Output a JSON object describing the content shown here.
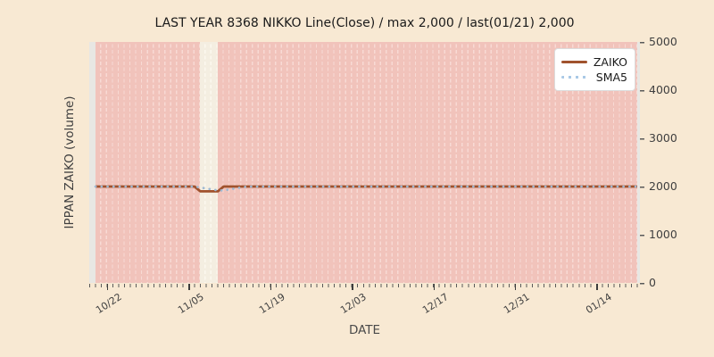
{
  "figure": {
    "title": "LAST YEAR 8368 NIKKO Line(Close) / max 2,000 / last(01/21) 2,000",
    "xlabel": "DATE",
    "ylabel": "IPPAN ZAIKO (volume)",
    "colors": {
      "background": "#f8e9d3",
      "plot_background": "#e8e7e3",
      "day_band_pink": "#f1c3bb",
      "day_band_grid": "#f8dad4",
      "no_data_band": "#f4eee1",
      "zaiko_line": "#a0522d",
      "sma5_dots": "#a9c9e6",
      "tick_text": "#3f3f3f",
      "title_text": "#1a1a1a"
    }
  },
  "legend": {
    "items": [
      {
        "label": "ZAIKO",
        "style": "solid",
        "color": "#a0522d"
      },
      {
        "label": "SMA5",
        "style": "dotted",
        "color": "#a9c9e6"
      }
    ]
  },
  "chart_data": {
    "type": "line",
    "title": "LAST YEAR 8368 NIKKO Line(Close) / max 2,000 / last(01/21) 2,000",
    "xlabel": "DATE",
    "ylabel": "IPPAN ZAIKO (volume)",
    "ylim": [
      0,
      5000
    ],
    "y_ticks": [
      5000,
      4000,
      3000,
      2000,
      1000,
      0
    ],
    "x_ticks": [
      {
        "label": "10/22",
        "day": 2
      },
      {
        "label": "11/05",
        "day": 16
      },
      {
        "label": "11/19",
        "day": 30
      },
      {
        "label": "12/03",
        "day": 44
      },
      {
        "label": "12/17",
        "day": 58
      },
      {
        "label": "12/31",
        "day": 72
      },
      {
        "label": "01/14",
        "day": 86
      }
    ],
    "x_span": {
      "from_date": "10/20",
      "from_day": 0,
      "to_date": "01/21",
      "to_day": 93
    },
    "grid": {
      "vertical_daily_dashes": true,
      "horizontal": false
    },
    "legend_position": "upper-right",
    "stats": {
      "max": "2,000",
      "last_date": "01/21",
      "last_value": "2,000"
    },
    "no_data_band": {
      "from_date": "11/07",
      "from_day": 18,
      "to_date": "11/10",
      "to_day": 21
    },
    "series": [
      {
        "name": "ZAIKO",
        "style": "solid",
        "color": "#a0522d",
        "width": 2.8,
        "points": [
          {
            "date": "10/20",
            "day": 0,
            "value": 2000
          },
          {
            "date": "11/06",
            "day": 17,
            "value": 2000
          },
          {
            "date": "11/07",
            "day": 18,
            "value": 1900
          },
          {
            "date": "11/10",
            "day": 21,
            "value": 1900
          },
          {
            "date": "11/11",
            "day": 22,
            "value": 2000
          },
          {
            "date": "01/21",
            "day": 93,
            "value": 2000
          }
        ]
      },
      {
        "name": "SMA5",
        "style": "dotted",
        "color": "#9db8d2",
        "width": 2.6,
        "points": [
          {
            "date": "10/20",
            "day": 0,
            "value": 2000
          },
          {
            "date": "11/06",
            "day": 17,
            "value": 2000
          },
          {
            "date": "11/07",
            "day": 18,
            "value": 1980
          },
          {
            "date": "11/08",
            "day": 19,
            "value": 1960
          },
          {
            "date": "11/09",
            "day": 20,
            "value": 1940
          },
          {
            "date": "11/10",
            "day": 21,
            "value": 1920
          },
          {
            "date": "11/11",
            "day": 22,
            "value": 1920
          },
          {
            "date": "11/12",
            "day": 23,
            "value": 1940
          },
          {
            "date": "11/13",
            "day": 24,
            "value": 1960
          },
          {
            "date": "11/14",
            "day": 25,
            "value": 1980
          },
          {
            "date": "11/15",
            "day": 26,
            "value": 2000
          },
          {
            "date": "01/21",
            "day": 93,
            "value": 2000
          }
        ]
      }
    ]
  }
}
